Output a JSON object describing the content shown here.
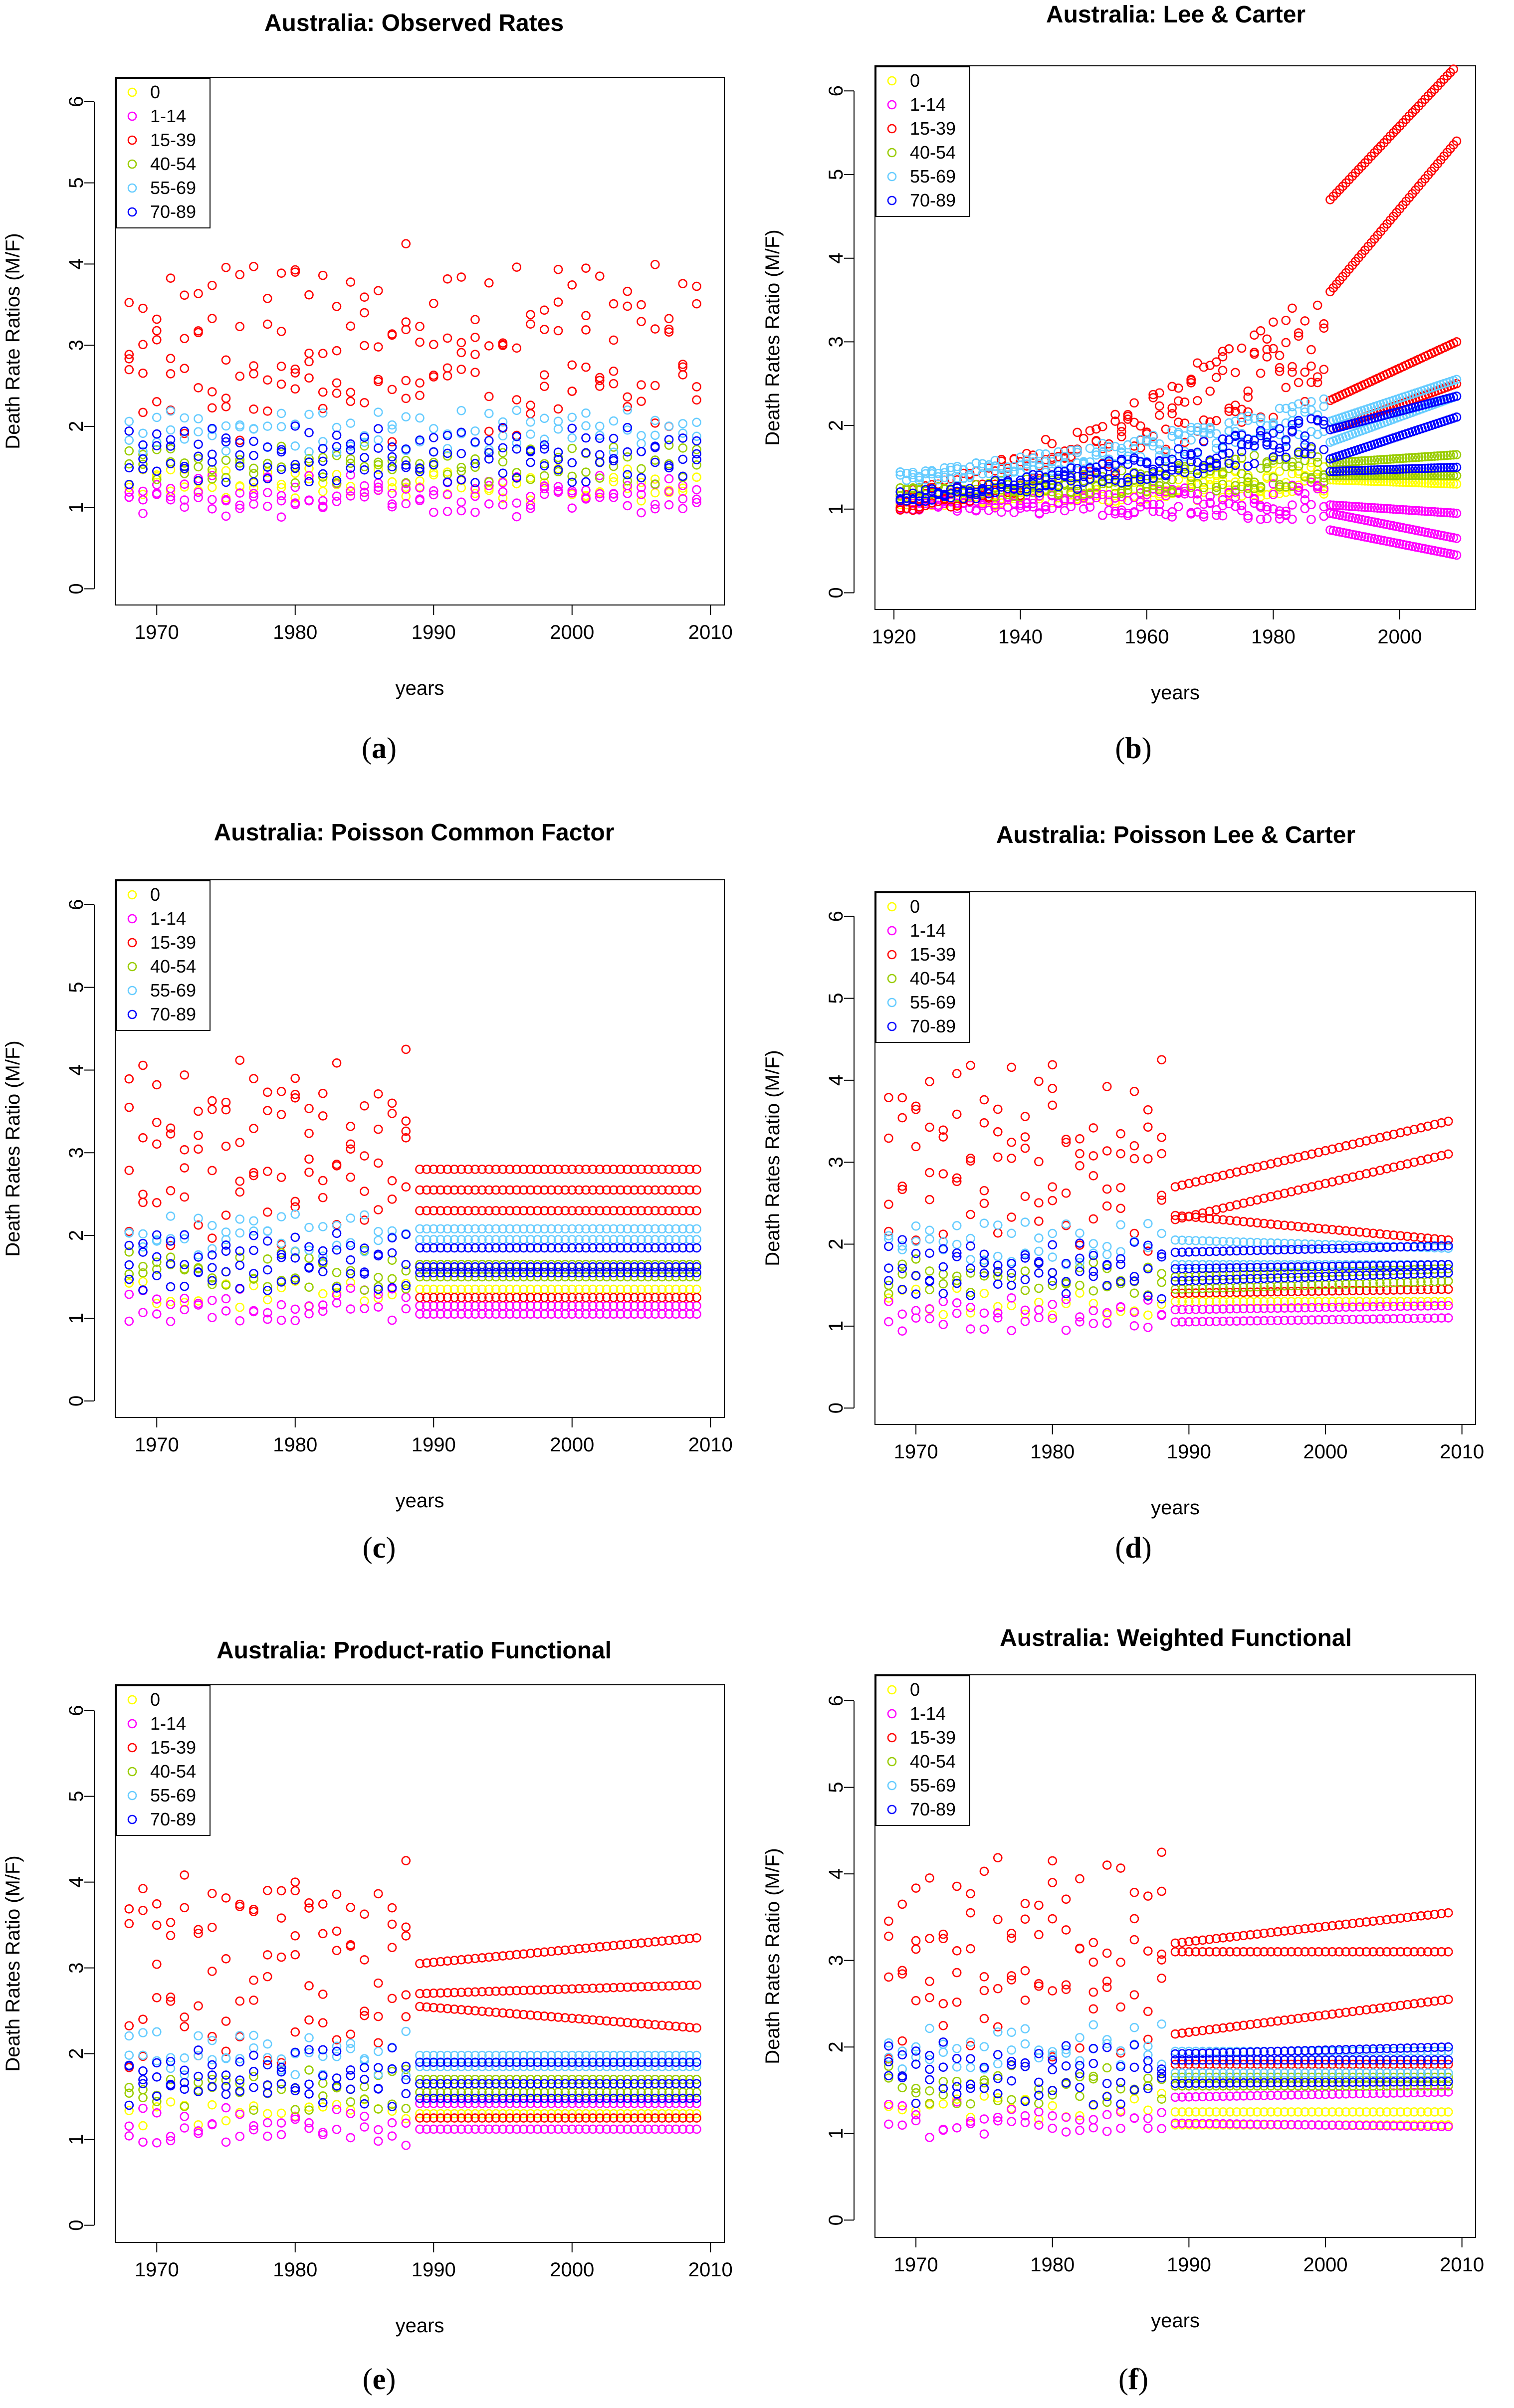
{
  "chart_data": [
    {
      "type": "scatter",
      "panel_label": "a",
      "title": "Australia: Observed Rates",
      "xlabel": "years",
      "ylabel": "Death Rate Ratios (M/F)",
      "xlim": [
        1967,
        2011
      ],
      "ylim": [
        -0.2,
        6.3
      ],
      "xticks": [
        1970,
        1980,
        1990,
        2000,
        2010
      ],
      "yticks": [
        0,
        1,
        2,
        3,
        4,
        5,
        6
      ],
      "legend": [
        "0",
        "1-14",
        "15-39",
        "40-54",
        "55-69",
        "70-89"
      ],
      "legend_position": "top-left",
      "observed": {
        "start": 1968,
        "end": 2009
      },
      "series": [
        {
          "name": "0",
          "color": "#ffff00",
          "levels": [
            1.25,
            1.32
          ],
          "mode": "observed"
        },
        {
          "name": "1-14",
          "color": "#ff00ff",
          "levels": [
            1.05,
            1.15,
            1.25
          ],
          "mode": "observed"
        },
        {
          "name": "15-39",
          "color": "#ff0000",
          "levels": [
            2.3,
            2.7,
            3.1,
            3.5
          ],
          "mode": "observed"
        },
        {
          "name": "40-54",
          "color": "#99cc00",
          "levels": [
            1.45,
            1.6
          ],
          "mode": "observed"
        },
        {
          "name": "55-69",
          "color": "#66ccff",
          "levels": [
            1.85,
            2.05
          ],
          "mode": "observed"
        },
        {
          "name": "70-89",
          "color": "#0000ff",
          "levels": [
            1.45,
            1.65,
            1.85
          ],
          "mode": "observed"
        }
      ]
    },
    {
      "type": "scatter",
      "panel_label": "b",
      "title": "Australia: Lee & Carter",
      "xlabel": "years",
      "ylabel": "Death Rates Ratio (M/F)",
      "xlim": [
        1917,
        2012
      ],
      "ylim": [
        -0.2,
        6.3
      ],
      "xticks": [
        1920,
        1940,
        1960,
        1980,
        2000
      ],
      "yticks": [
        0,
        1,
        2,
        3,
        4,
        5,
        6
      ],
      "legend": [
        "0",
        "1-14",
        "15-39",
        "40-54",
        "55-69",
        "70-89"
      ],
      "legend_position": "top-left",
      "observed": {
        "start": 1921,
        "end": 1988
      },
      "forecast": {
        "start": 1989,
        "end": 2009
      },
      "series": [
        {
          "name": "0",
          "color": "#ffff00",
          "trend": [
            1.1,
            1.4
          ],
          "fc": [
            [
              1.35,
              1.3
            ],
            [
              1.45,
              1.4
            ]
          ]
        },
        {
          "name": "1-14",
          "color": "#ff00ff",
          "trend": [
            1.05,
            1.1
          ],
          "fc": [
            [
              0.95,
              0.65
            ],
            [
              0.75,
              0.45
            ],
            [
              1.05,
              0.95
            ]
          ]
        },
        {
          "name": "15-39",
          "color": "#ff0000",
          "trend": [
            1.1,
            3.0
          ],
          "fc": [
            [
              4.7,
              6.3
            ],
            [
              3.6,
              5.4
            ],
            [
              2.3,
              3.0
            ],
            [
              1.95,
              2.5
            ]
          ]
        },
        {
          "name": "40-54",
          "color": "#99cc00",
          "trend": [
            1.2,
            1.5
          ],
          "fc": [
            [
              1.4,
              1.4
            ],
            [
              1.55,
              1.65
            ]
          ]
        },
        {
          "name": "55-69",
          "color": "#66ccff",
          "trend": [
            1.4,
            2.1
          ],
          "fc": [
            [
              2.05,
              2.55
            ],
            [
              1.8,
              2.35
            ]
          ]
        },
        {
          "name": "70-89",
          "color": "#0000ff",
          "trend": [
            1.15,
            1.9
          ],
          "fc": [
            [
              1.95,
              2.35
            ],
            [
              1.6,
              2.1
            ],
            [
              1.45,
              1.5
            ]
          ]
        }
      ]
    },
    {
      "type": "scatter",
      "panel_label": "c",
      "title": "Australia: Poisson Common Factor",
      "xlabel": "years",
      "ylabel": "Death Rates Ratio (M/F)",
      "xlim": [
        1967,
        2011
      ],
      "ylim": [
        -0.2,
        6.3
      ],
      "xticks": [
        1970,
        1980,
        1990,
        2000,
        2010
      ],
      "yticks": [
        0,
        1,
        2,
        3,
        4,
        5,
        6
      ],
      "legend": [
        "0",
        "1-14",
        "15-39",
        "40-54",
        "55-69",
        "70-89"
      ],
      "legend_position": "top-left",
      "observed": {
        "start": 1968,
        "end": 1988
      },
      "forecast": {
        "start": 1989,
        "end": 2009
      },
      "series": [
        {
          "name": "0",
          "color": "#ffff00",
          "levels": [
            1.3
          ],
          "fc": [
            [
              1.35,
              1.35
            ]
          ]
        },
        {
          "name": "1-14",
          "color": "#ff00ff",
          "levels": [
            1.1,
            1.2
          ],
          "fc": [
            [
              1.05,
              1.05
            ],
            [
              1.15,
              1.15
            ]
          ]
        },
        {
          "name": "15-39",
          "color": "#ff0000",
          "levels": [
            2.3,
            2.8,
            3.3,
            3.7
          ],
          "fc": [
            [
              2.3,
              2.3
            ],
            [
              2.55,
              2.55
            ],
            [
              2.8,
              2.8
            ],
            [
              1.25,
              1.25
            ]
          ]
        },
        {
          "name": "40-54",
          "color": "#99cc00",
          "levels": [
            1.5,
            1.65
          ],
          "fc": [
            [
              1.5,
              1.5
            ],
            [
              1.65,
              1.65
            ]
          ]
        },
        {
          "name": "55-69",
          "color": "#66ccff",
          "levels": [
            1.9,
            2.1
          ],
          "fc": [
            [
              1.95,
              1.95
            ],
            [
              2.08,
              2.08
            ]
          ]
        },
        {
          "name": "70-89",
          "color": "#0000ff",
          "levels": [
            1.5,
            1.7,
            1.9
          ],
          "fc": [
            [
              1.55,
              1.55
            ],
            [
              1.85,
              1.85
            ],
            [
              1.62,
              1.62
            ]
          ]
        }
      ]
    },
    {
      "type": "scatter",
      "panel_label": "d",
      "title": "Australia: Poisson Lee & Carter",
      "xlabel": "years",
      "ylabel": "Death Rates Ratio (M/F)",
      "xlim": [
        1967,
        2011
      ],
      "ylim": [
        -0.2,
        6.3
      ],
      "xticks": [
        1970,
        1980,
        1990,
        2000,
        2010
      ],
      "yticks": [
        0,
        1,
        2,
        3,
        4,
        5,
        6
      ],
      "legend": [
        "0",
        "1-14",
        "15-39",
        "40-54",
        "55-69",
        "70-89"
      ],
      "legend_position": "top-left",
      "observed": {
        "start": 1968,
        "end": 1988
      },
      "forecast": {
        "start": 1989,
        "end": 2009
      },
      "series": [
        {
          "name": "0",
          "color": "#ffff00",
          "levels": [
            1.3
          ],
          "fc": [
            [
              1.3,
              1.3
            ]
          ]
        },
        {
          "name": "1-14",
          "color": "#ff00ff",
          "levels": [
            1.1,
            1.2
          ],
          "fc": [
            [
              1.05,
              1.1
            ],
            [
              1.2,
              1.25
            ]
          ]
        },
        {
          "name": "15-39",
          "color": "#ff0000",
          "levels": [
            2.3,
            2.8,
            3.3,
            3.7
          ],
          "fc": [
            [
              2.7,
              3.5
            ],
            [
              2.3,
              3.1
            ],
            [
              2.35,
              2.05
            ],
            [
              1.4,
              1.45
            ]
          ]
        },
        {
          "name": "40-54",
          "color": "#99cc00",
          "levels": [
            1.5,
            1.65
          ],
          "fc": [
            [
              1.45,
              1.55
            ],
            [
              1.6,
              1.7
            ]
          ]
        },
        {
          "name": "55-69",
          "color": "#66ccff",
          "levels": [
            1.9,
            2.1
          ],
          "fc": [
            [
              2.05,
              1.95
            ],
            [
              1.75,
              1.75
            ]
          ]
        },
        {
          "name": "70-89",
          "color": "#0000ff",
          "levels": [
            1.5,
            1.7,
            1.9
          ],
          "fc": [
            [
              1.9,
              1.98
            ],
            [
              1.55,
              1.65
            ],
            [
              1.7,
              1.75
            ]
          ]
        }
      ]
    },
    {
      "type": "scatter",
      "panel_label": "e",
      "title": "Australia: Product-ratio Functional",
      "xlabel": "years",
      "ylabel": "Death Rates Ratio (M/F)",
      "xlim": [
        1967,
        2011
      ],
      "ylim": [
        -0.2,
        6.3
      ],
      "xticks": [
        1970,
        1980,
        1990,
        2000,
        2010
      ],
      "yticks": [
        0,
        1,
        2,
        3,
        4,
        5,
        6
      ],
      "legend": [
        "0",
        "1-14",
        "15-39",
        "40-54",
        "55-69",
        "70-89"
      ],
      "legend_position": "top-left",
      "observed": {
        "start": 1968,
        "end": 1988
      },
      "forecast": {
        "start": 1989,
        "end": 2009
      },
      "series": [
        {
          "name": "0",
          "color": "#ffff00",
          "levels": [
            1.3
          ],
          "fc": [
            [
              1.3,
              1.3
            ]
          ]
        },
        {
          "name": "1-14",
          "color": "#ff00ff",
          "levels": [
            1.1,
            1.2
          ],
          "fc": [
            [
              1.12,
              1.12
            ],
            [
              1.42,
              1.42
            ]
          ]
        },
        {
          "name": "15-39",
          "color": "#ff0000",
          "levels": [
            2.3,
            2.8,
            3.3,
            3.7
          ],
          "fc": [
            [
              3.05,
              3.35
            ],
            [
              2.7,
              2.8
            ],
            [
              2.55,
              2.3
            ],
            [
              1.25,
              1.25
            ]
          ]
        },
        {
          "name": "40-54",
          "color": "#99cc00",
          "levels": [
            1.5,
            1.65
          ],
          "fc": [
            [
              1.55,
              1.55
            ],
            [
              1.7,
              1.7
            ]
          ]
        },
        {
          "name": "55-69",
          "color": "#66ccff",
          "levels": [
            1.9,
            2.1
          ],
          "fc": [
            [
              1.98,
              1.98
            ],
            [
              1.85,
              1.85
            ]
          ]
        },
        {
          "name": "70-89",
          "color": "#0000ff",
          "levels": [
            1.5,
            1.7,
            1.9
          ],
          "fc": [
            [
              1.9,
              1.9
            ],
            [
              1.65,
              1.65
            ],
            [
              1.48,
              1.48
            ]
          ]
        }
      ]
    },
    {
      "type": "scatter",
      "panel_label": "f",
      "title": "Australia: Weighted Functional",
      "xlabel": "years",
      "ylabel": "Death Rates Ratio (M/F)",
      "xlim": [
        1967,
        2011
      ],
      "ylim": [
        -0.2,
        6.3
      ],
      "xticks": [
        1970,
        1980,
        1990,
        2000,
        2010
      ],
      "yticks": [
        0,
        1,
        2,
        3,
        4,
        5,
        6
      ],
      "legend": [
        "0",
        "1-14",
        "15-39",
        "40-54",
        "55-69",
        "70-89"
      ],
      "legend_position": "top-left",
      "observed": {
        "start": 1968,
        "end": 1988
      },
      "forecast": {
        "start": 1989,
        "end": 2009
      },
      "series": [
        {
          "name": "0",
          "color": "#ffff00",
          "levels": [
            1.3
          ],
          "fc": [
            [
              1.1,
              1.1
            ],
            [
              1.25,
              1.25
            ]
          ]
        },
        {
          "name": "1-14",
          "color": "#ff00ff",
          "levels": [
            1.1,
            1.2
          ],
          "fc": [
            [
              1.42,
              1.48
            ],
            [
              1.12,
              1.08
            ]
          ]
        },
        {
          "name": "15-39",
          "color": "#ff0000",
          "levels": [
            2.3,
            2.8,
            3.3,
            3.7
          ],
          "fc": [
            [
              3.2,
              3.55
            ],
            [
              3.1,
              3.1
            ],
            [
              2.15,
              2.55
            ],
            [
              1.8,
              1.8
            ]
          ]
        },
        {
          "name": "40-54",
          "color": "#99cc00",
          "levels": [
            1.5,
            1.65
          ],
          "fc": [
            [
              1.55,
              1.55
            ],
            [
              1.65,
              1.65
            ]
          ]
        },
        {
          "name": "55-69",
          "color": "#66ccff",
          "levels": [
            1.9,
            2.1
          ],
          "fc": [
            [
              1.95,
              1.95
            ],
            [
              1.7,
              1.7
            ]
          ]
        },
        {
          "name": "70-89",
          "color": "#0000ff",
          "levels": [
            1.5,
            1.7,
            1.9
          ],
          "fc": [
            [
              1.92,
              2.0
            ],
            [
              1.58,
              1.6
            ],
            [
              1.85,
              1.85
            ]
          ]
        }
      ]
    }
  ]
}
